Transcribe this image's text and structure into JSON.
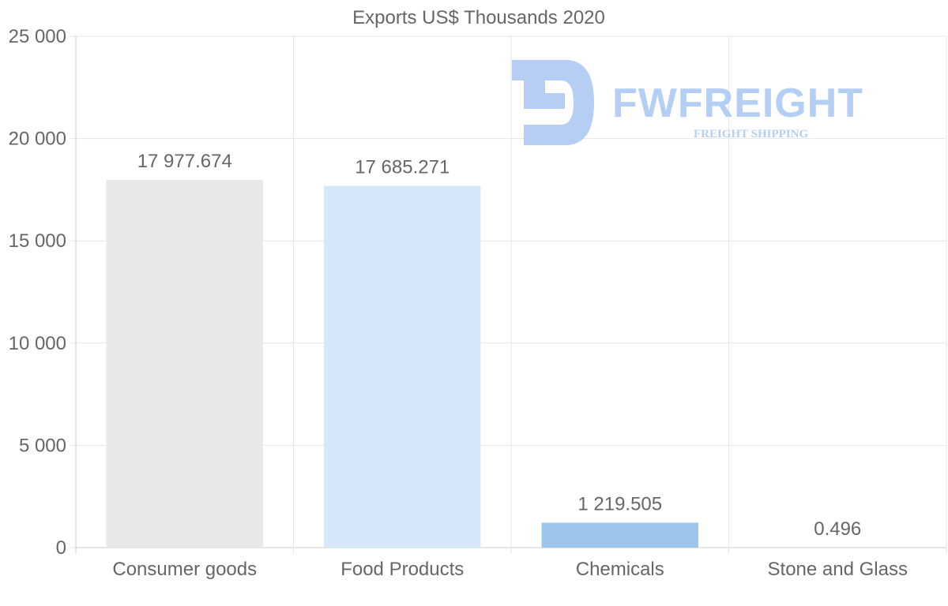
{
  "chart_data": {
    "type": "bar",
    "title": "Exports US$ Thousands 2020",
    "xlabel": "",
    "ylabel": "",
    "categories": [
      "Consumer goods",
      "Food Products",
      "Chemicals",
      "Stone and Glass"
    ],
    "values": [
      17977.674,
      17685.271,
      1219.505,
      0.496
    ],
    "value_labels": [
      "17 977.674",
      "17 685.271",
      "1 219.505",
      "0.496"
    ],
    "bar_colors": [
      "#e8e8e8",
      "#d6e7f9",
      "#9ec5ea",
      "#9ec5ea"
    ],
    "ylim": [
      0,
      25000
    ],
    "yticks": [
      0,
      5000,
      10000,
      15000,
      20000,
      25000
    ],
    "ytick_labels": [
      "0",
      "5 000",
      "10 000",
      "15 000",
      "20 000",
      "25 000"
    ],
    "grid": true,
    "legend": "none"
  },
  "watermark": {
    "brand": "FWFREIGHT",
    "tagline": "FREIGHT SHIPPING",
    "color": "#a9c6f2"
  },
  "colors": {
    "text": "#666666",
    "grid": "#e6e6e6",
    "axis": "#cccccc"
  }
}
